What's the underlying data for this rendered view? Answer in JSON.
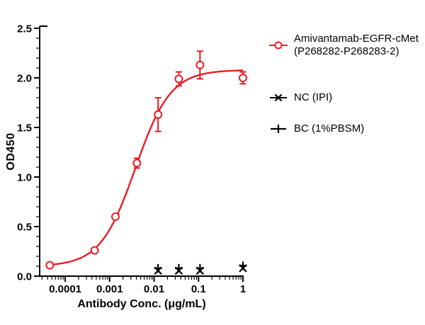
{
  "figure": {
    "background": "#ffffff"
  },
  "chart_data": {
    "type": "line",
    "title": "",
    "xlabel": "Antibody Conc. (μg/mL)",
    "ylabel": "OD450",
    "x_scale": "log",
    "xlim_log10": [
      -4.575,
      0
    ],
    "ylim": [
      0,
      2.5
    ],
    "y_major_step": 0.5,
    "y_minor_step": 0.1,
    "y_tick_labels": [
      "0.0",
      "0.5",
      "1.0",
      "1.5",
      "2.0",
      "2.5"
    ],
    "x_ticks": [
      0.0001,
      0.001,
      0.01,
      0.1,
      1
    ],
    "x_tick_labels": [
      "0.0001",
      "0.001",
      "0.01",
      "0.1",
      "1"
    ],
    "grid": false,
    "legend_position": "right",
    "colors": {
      "accent_red": "#EC1C24",
      "black": "#000000"
    },
    "series": [
      {
        "name": "Amivantamab-EGFR-cMet (P268282-P268283-2)",
        "color": "#EC1C24",
        "marker": "open-circle",
        "x": [
          4.5e-05,
          0.00046,
          0.00135,
          0.0041,
          0.0123,
          0.036,
          0.108,
          1
        ],
        "y": [
          0.11,
          0.26,
          0.6,
          1.14,
          1.63,
          1.99,
          2.13,
          2.0
        ],
        "yerr": [
          0,
          0,
          0.02,
          0.05,
          0.17,
          0.07,
          0.14,
          0.06
        ],
        "fit": {
          "model": "4PL",
          "bottom": 0.1,
          "top": 2.08,
          "ec50": 0.0038,
          "hill": 1.1
        }
      },
      {
        "name": "NC (IPI)",
        "color": "#000000",
        "marker": "x",
        "x": [
          0.0123,
          0.036,
          0.108,
          1
        ],
        "y": [
          0.055,
          0.055,
          0.055,
          0.08
        ],
        "yerr": [
          0,
          0,
          0,
          0
        ]
      },
      {
        "name": "BC (1%PBSM)",
        "color": "#000000",
        "marker": "plus",
        "x": [
          0.0123,
          0.036,
          0.108,
          1
        ],
        "y": [
          0.08,
          0.08,
          0.08,
          0.105
        ],
        "yerr": [
          0,
          0,
          0,
          0
        ]
      }
    ],
    "legend": {
      "entries": [
        {
          "label_line1": "Amivantamab-EGFR-cMet",
          "label_line2": "(P268282-P268283-2)",
          "marker": "line-open-circle",
          "color": "#EC1C24"
        },
        {
          "label_line1": "NC (IPI)",
          "label_line2": "",
          "marker": "line-x",
          "color": "#000000"
        },
        {
          "label_line1": "BC (1%PBSM)",
          "label_line2": "",
          "marker": "line-plus",
          "color": "#000000"
        }
      ]
    }
  }
}
